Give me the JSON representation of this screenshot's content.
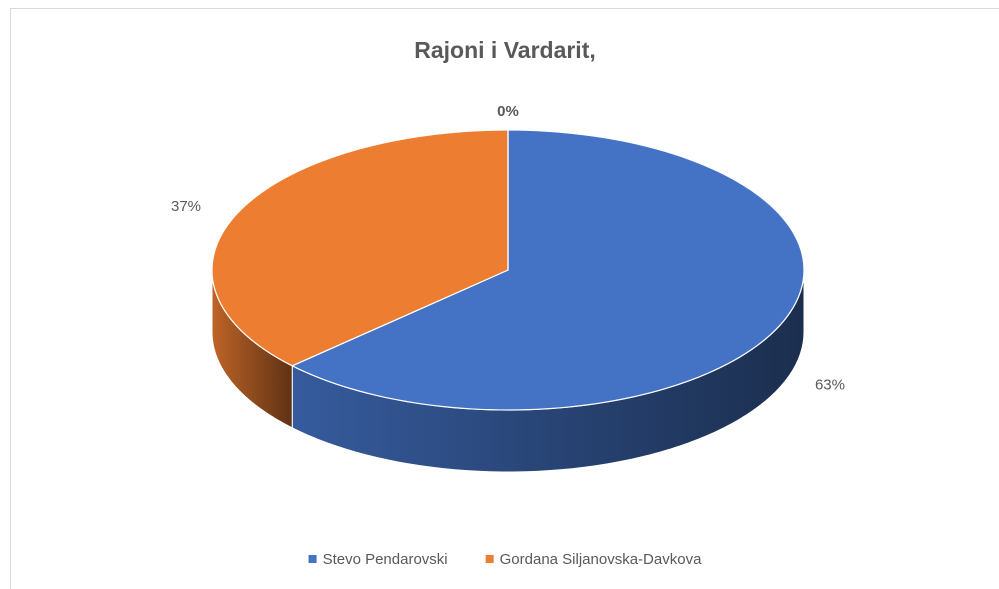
{
  "chart_data": {
    "type": "pie3d",
    "title": "Rajoni i Vardarit,",
    "categories": [
      "Stevo Pendarovski",
      "Gordana Siljanovska-Davkova",
      null
    ],
    "values": [
      63,
      37,
      0
    ],
    "value_labels": [
      "63%",
      "37%",
      "0%"
    ],
    "colors": [
      "#4472c4",
      "#ed7d31"
    ],
    "legend": "bottom"
  }
}
